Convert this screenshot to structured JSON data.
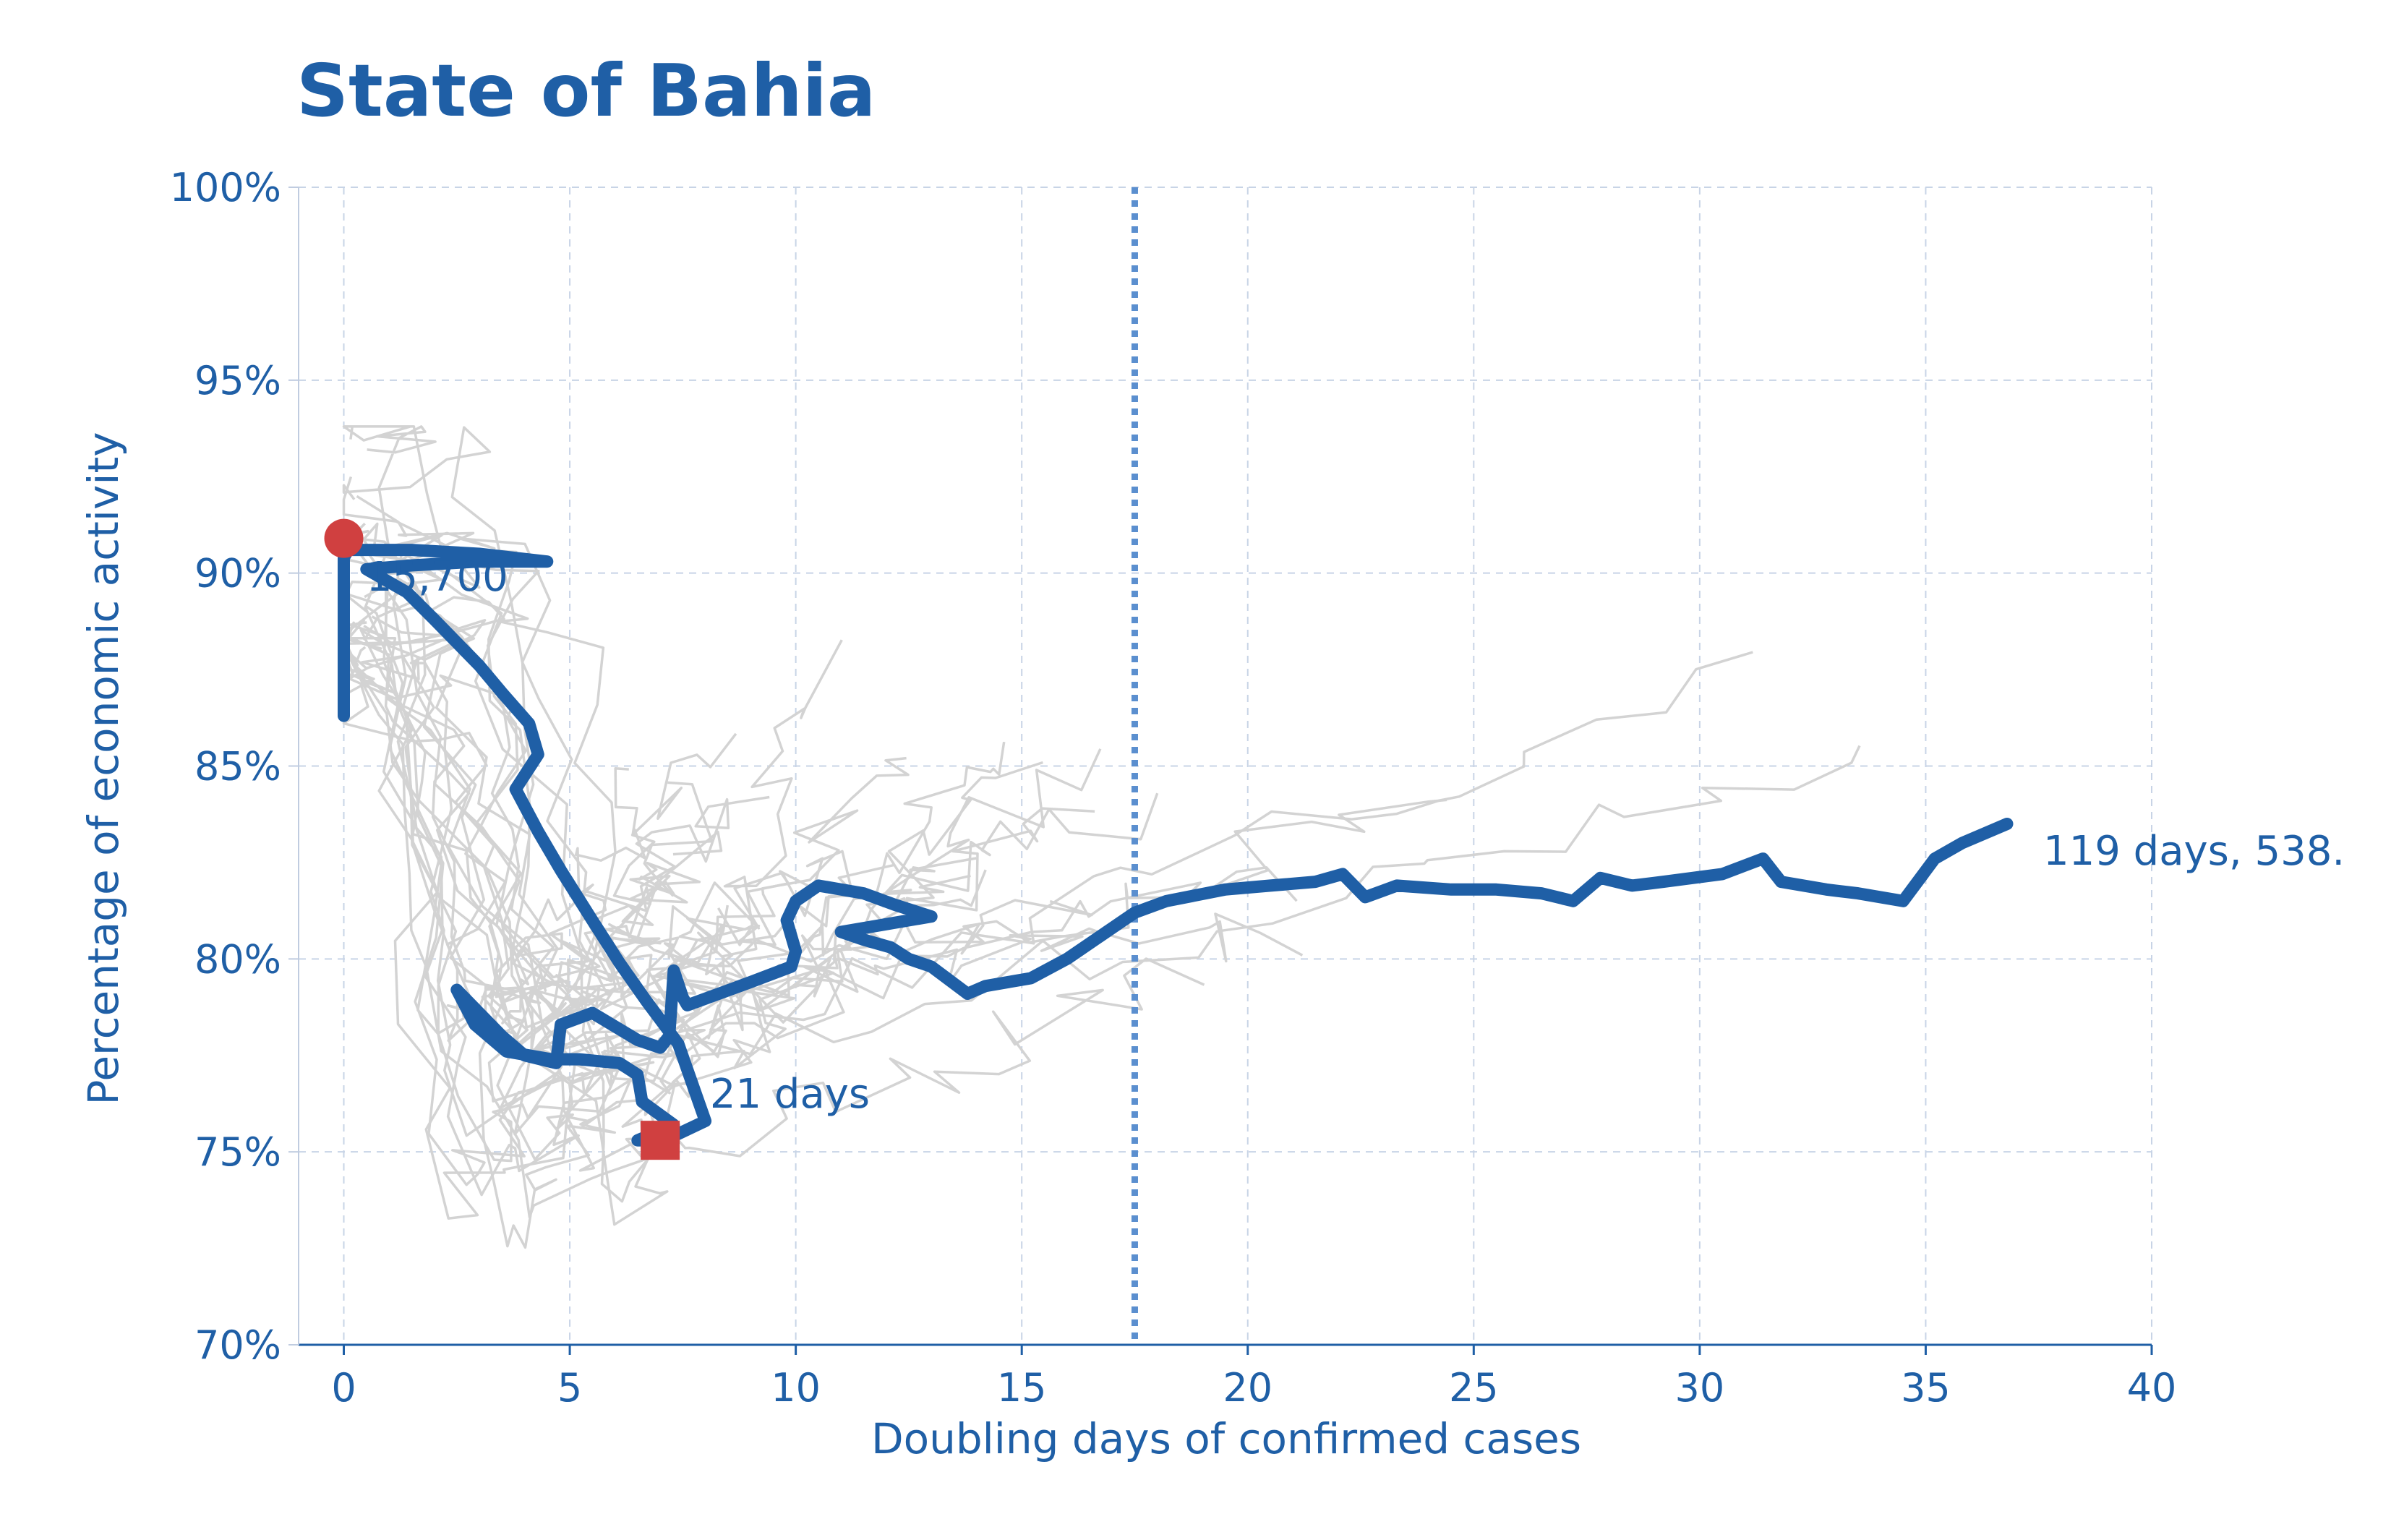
{
  "colors": {
    "accent": "#1f5fa6",
    "axis_text": "#1f5fa6",
    "trajectory": "#1f5fa6",
    "marker": "#d04040",
    "background_traces": "#d3d3d3",
    "grid": "#c8d4e6",
    "reference_line": "#5b8fcf"
  },
  "chart_data": {
    "type": "line",
    "title": "State of Bahia",
    "xlabel": "Doubling days of confirmed cases",
    "ylabel": "Percentage of economic activity",
    "xlim": [
      -1,
      40
    ],
    "ylim": [
      70,
      100
    ],
    "xticks": [
      0,
      5,
      10,
      15,
      20,
      25,
      30,
      35,
      40
    ],
    "xtick_labels": [
      "0",
      "5",
      "10",
      "15",
      "20",
      "25",
      "30",
      "35",
      "40"
    ],
    "yticks": [
      70,
      75,
      80,
      85,
      90,
      95,
      100
    ],
    "ytick_labels": [
      "70%",
      "75%",
      "80%",
      "85%",
      "90%",
      "95%",
      "100%"
    ],
    "grid": true,
    "reference_line_x": 17.5,
    "series": [
      {
        "role": "highlight",
        "points": [
          [
            0,
            86.3
          ],
          [
            0,
            90.4
          ],
          [
            0.1,
            90.6
          ],
          [
            1.5,
            90.6
          ],
          [
            3.0,
            90.5
          ],
          [
            4.5,
            90.3
          ],
          [
            3.0,
            90.3
          ],
          [
            1.5,
            90.2
          ],
          [
            0.5,
            90.1
          ],
          [
            1.4,
            89.5
          ],
          [
            2.0,
            88.8
          ],
          [
            3.0,
            87.6
          ],
          [
            3.5,
            86.9
          ],
          [
            4.1,
            86.1
          ],
          [
            4.3,
            85.3
          ],
          [
            3.8,
            84.4
          ],
          [
            4.3,
            83.3
          ],
          [
            4.8,
            82.3
          ],
          [
            5.5,
            81.0
          ],
          [
            6.1,
            79.9
          ],
          [
            6.7,
            78.9
          ],
          [
            7.4,
            77.8
          ],
          [
            8.0,
            75.8
          ],
          [
            7.1,
            75.3
          ],
          [
            6.5,
            75.3
          ],
          [
            7.3,
            75.7
          ],
          [
            6.6,
            76.3
          ],
          [
            6.5,
            77.0
          ],
          [
            6.1,
            77.3
          ],
          [
            5.2,
            77.4
          ],
          [
            4.6,
            77.4
          ],
          [
            3.6,
            77.6
          ],
          [
            2.9,
            78.3
          ],
          [
            2.5,
            79.2
          ],
          [
            3.0,
            78.6
          ],
          [
            3.5,
            78.0
          ],
          [
            4.0,
            77.5
          ],
          [
            4.7,
            77.3
          ],
          [
            4.8,
            78.3
          ],
          [
            5.5,
            78.6
          ],
          [
            6.5,
            77.9
          ],
          [
            7.0,
            77.7
          ],
          [
            7.2,
            78.0
          ],
          [
            7.3,
            79.7
          ],
          [
            7.5,
            79.0
          ],
          [
            7.6,
            78.8
          ],
          [
            9.0,
            79.4
          ],
          [
            9.9,
            79.8
          ],
          [
            10.0,
            80.2
          ],
          [
            9.8,
            81.0
          ],
          [
            10.0,
            81.5
          ],
          [
            10.5,
            81.9
          ],
          [
            11.5,
            81.7
          ],
          [
            12.2,
            81.4
          ],
          [
            13.0,
            81.1
          ],
          [
            11.0,
            80.7
          ],
          [
            11.5,
            80.5
          ],
          [
            12.1,
            80.3
          ],
          [
            12.5,
            80.0
          ],
          [
            13.0,
            79.8
          ],
          [
            13.8,
            79.1
          ],
          [
            14.2,
            79.3
          ],
          [
            15.2,
            79.5
          ],
          [
            16.0,
            80.0
          ],
          [
            17.0,
            80.8
          ],
          [
            17.5,
            81.2
          ],
          [
            18.2,
            81.5
          ],
          [
            19.5,
            81.8
          ],
          [
            20.5,
            81.9
          ],
          [
            21.5,
            82.0
          ],
          [
            22.1,
            82.2
          ],
          [
            22.6,
            81.6
          ],
          [
            23.3,
            81.9
          ],
          [
            24.5,
            81.8
          ],
          [
            25.5,
            81.8
          ],
          [
            26.5,
            81.7
          ],
          [
            27.2,
            81.5
          ],
          [
            27.8,
            82.1
          ],
          [
            28.5,
            81.9
          ],
          [
            29.2,
            82.0
          ],
          [
            30.5,
            82.2
          ],
          [
            31.4,
            82.6
          ],
          [
            31.8,
            82.0
          ],
          [
            32.8,
            81.8
          ],
          [
            33.5,
            81.7
          ],
          [
            34.5,
            81.5
          ],
          [
            35.2,
            82.6
          ],
          [
            35.8,
            83.0
          ],
          [
            36.8,
            83.5
          ]
        ]
      }
    ],
    "start_marker": {
      "x": 0,
      "y": 90.9
    },
    "min_marker": {
      "x": 7.0,
      "y": 75.3
    },
    "annotations": [
      {
        "text": "15,700",
        "x": 0.5,
        "y": 89.9
      },
      {
        "text": "21 days",
        "x": 8.1,
        "y": 76.5
      },
      {
        "text": "119 days, 538.",
        "x": 37.6,
        "y": 82.8
      }
    ],
    "legend": "none"
  }
}
